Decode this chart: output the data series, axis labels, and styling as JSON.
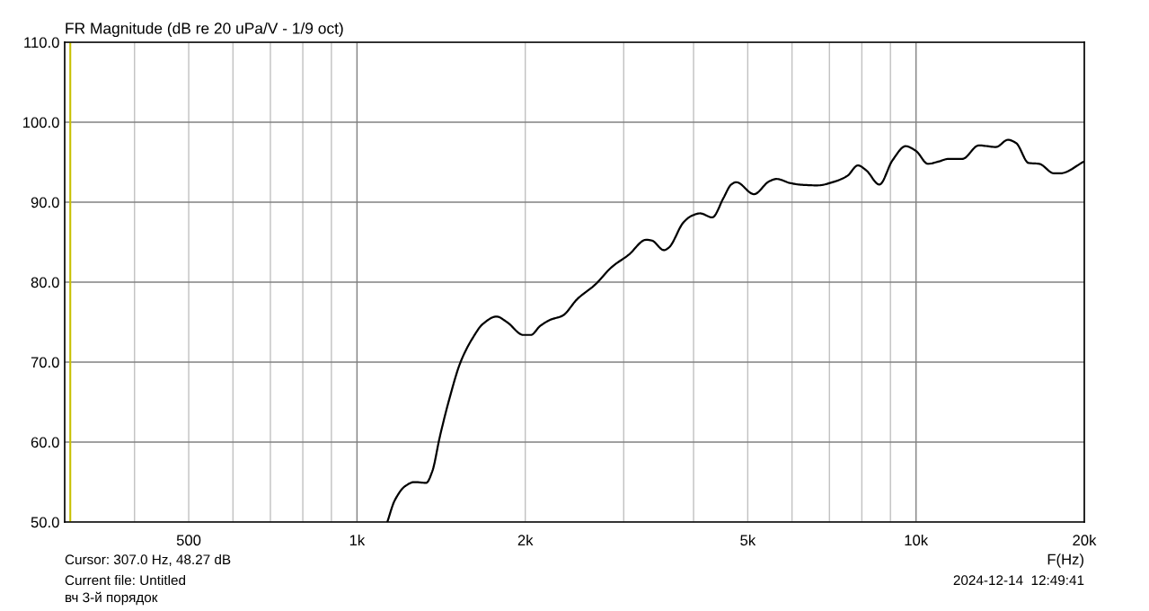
{
  "chart_data": {
    "type": "line",
    "title": "FR Magnitude (dB re 20 uPa/V - 1/9 oct)",
    "xlabel": "F(Hz)",
    "log": "x",
    "grid": true,
    "legend": false,
    "marker": "none",
    "line_style": "solid",
    "xlim": [
      300,
      20000
    ],
    "xticks": [
      {
        "value": 400,
        "label": null
      },
      {
        "value": 500,
        "label": "500"
      },
      {
        "value": 600,
        "label": null
      },
      {
        "value": 700,
        "label": null
      },
      {
        "value": 800,
        "label": null
      },
      {
        "value": 900,
        "label": null
      },
      {
        "value": 1000,
        "label": "1k"
      },
      {
        "value": 2000,
        "label": "2k"
      },
      {
        "value": 3000,
        "label": null
      },
      {
        "value": 4000,
        "label": null
      },
      {
        "value": 5000,
        "label": "5k"
      },
      {
        "value": 6000,
        "label": null
      },
      {
        "value": 7000,
        "label": null
      },
      {
        "value": 8000,
        "label": null
      },
      {
        "value": 9000,
        "label": null
      },
      {
        "value": 10000,
        "label": "10k"
      },
      {
        "value": 20000,
        "label": "20k"
      }
    ],
    "ylim": [
      50,
      110
    ],
    "yticks": [
      {
        "value": 50,
        "label": "50.0"
      },
      {
        "value": 60,
        "label": "60.0"
      },
      {
        "value": 70,
        "label": "70.0"
      },
      {
        "value": 80,
        "label": "80.0"
      },
      {
        "value": 90,
        "label": "90.0"
      },
      {
        "value": 100,
        "label": "100.0"
      },
      {
        "value": 110,
        "label": "110.0"
      }
    ],
    "ref_lines": [
      {
        "axis": "x",
        "value": 307,
        "color": "#c8c000"
      }
    ],
    "series": [
      {
        "color": "#000000",
        "x": [
          1133,
          1168,
          1220,
          1266,
          1330,
          1363,
          1406,
          1459,
          1532,
          1610,
          1681,
          1776,
          1855,
          1984,
          2047,
          2125,
          2219,
          2331,
          2479,
          2668,
          2857,
          3060,
          3290,
          3370,
          3540,
          3610,
          3840,
          3970,
          4110,
          4320,
          4530,
          4670,
          4770,
          5130,
          5460,
          5630,
          5950,
          6180,
          6660,
          7170,
          7540,
          7870,
          8140,
          8600,
          9070,
          9580,
          10000,
          10500,
          11000,
          11400,
          12100,
          12950,
          13900,
          14600,
          15100,
          15900,
          16600,
          17660,
          18100,
          20000
        ],
        "values": [
          50.0,
          52.7,
          54.5,
          55.0,
          54.9,
          56.3,
          60.6,
          65.1,
          70.0,
          73.0,
          74.8,
          75.7,
          75.0,
          73.4,
          73.4,
          74.5,
          75.3,
          75.8,
          77.9,
          79.7,
          81.9,
          83.4,
          85.3,
          85.2,
          84.0,
          84.3,
          87.5,
          88.3,
          88.6,
          88.1,
          90.6,
          92.2,
          92.5,
          91.0,
          92.6,
          92.9,
          92.4,
          92.2,
          92.1,
          92.6,
          93.3,
          94.6,
          94.0,
          92.2,
          95.2,
          97.0,
          96.4,
          94.8,
          95.1,
          95.4,
          95.4,
          97.1,
          96.9,
          97.8,
          97.4,
          94.9,
          94.8,
          93.6,
          93.6,
          95.1
        ]
      }
    ],
    "annotations": [
      "Cursor: 307.0 Hz, 48.27 dB",
      "Current file: Untitled",
      "вч 3-й порядок",
      "2024-12-14  12:49:41"
    ]
  }
}
